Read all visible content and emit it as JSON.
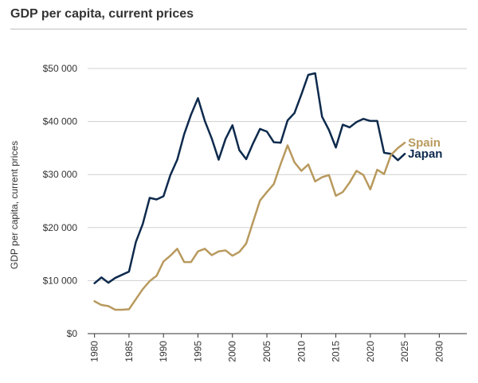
{
  "chart_data": {
    "type": "line",
    "title": "GDP per capita, current prices",
    "ylabel": "GDP per capita, current prices",
    "xlabel": "",
    "xlim": [
      1979,
      2034
    ],
    "ylim": [
      0,
      50000
    ],
    "x_ticks": [
      1980,
      1985,
      1990,
      1995,
      2000,
      2005,
      2010,
      2015,
      2020,
      2025,
      2030
    ],
    "y_ticks": [
      {
        "value": 0,
        "label": "$0"
      },
      {
        "value": 10000,
        "label": "$10 000"
      },
      {
        "value": 20000,
        "label": "$20 000"
      },
      {
        "value": 30000,
        "label": "$30 000"
      },
      {
        "value": 40000,
        "label": "$40 000"
      },
      {
        "value": 50000,
        "label": "$50 000"
      }
    ],
    "grid": "horizontal",
    "legend": "inline-right",
    "x": [
      1980,
      1981,
      1982,
      1983,
      1984,
      1985,
      1986,
      1987,
      1988,
      1989,
      1990,
      1991,
      1992,
      1993,
      1994,
      1995,
      1996,
      1997,
      1998,
      1999,
      2000,
      2001,
      2002,
      2003,
      2004,
      2005,
      2006,
      2007,
      2008,
      2009,
      2010,
      2011,
      2012,
      2013,
      2014,
      2015,
      2016,
      2017,
      2018,
      2019,
      2020,
      2021,
      2022,
      2023,
      2024,
      2025,
      2026,
      2027
    ],
    "series": [
      {
        "name": "Japan",
        "color": "#0e2a4d",
        "values": [
          9500,
          10600,
          9600,
          10500,
          11100,
          11700,
          17300,
          20700,
          25600,
          25300,
          25900,
          29900,
          32800,
          37600,
          41300,
          44400,
          40100,
          36800,
          32800,
          36700,
          39300,
          34600,
          32900,
          35900,
          38600,
          38100,
          36100,
          36000,
          40200,
          41600,
          45100,
          48800,
          49100,
          40900,
          38400,
          35100,
          39400,
          38900,
          39900,
          40500,
          40100,
          40100,
          34100,
          33900,
          32700,
          33900,
          null,
          null
        ]
      },
      {
        "name": "Spain",
        "color": "#b89a5e",
        "values": [
          6100,
          5400,
          5200,
          4500,
          4500,
          4600,
          6500,
          8400,
          9900,
          10900,
          13600,
          14700,
          16000,
          13500,
          13500,
          15500,
          16000,
          14800,
          15500,
          15700,
          14700,
          15400,
          17000,
          21100,
          25100,
          26700,
          28200,
          32000,
          35500,
          32300,
          30700,
          31900,
          28700,
          29500,
          29900,
          26000,
          26700,
          28500,
          30700,
          29900,
          27200,
          30900,
          30100,
          33700,
          35000,
          36000,
          null,
          null
        ]
      }
    ]
  }
}
